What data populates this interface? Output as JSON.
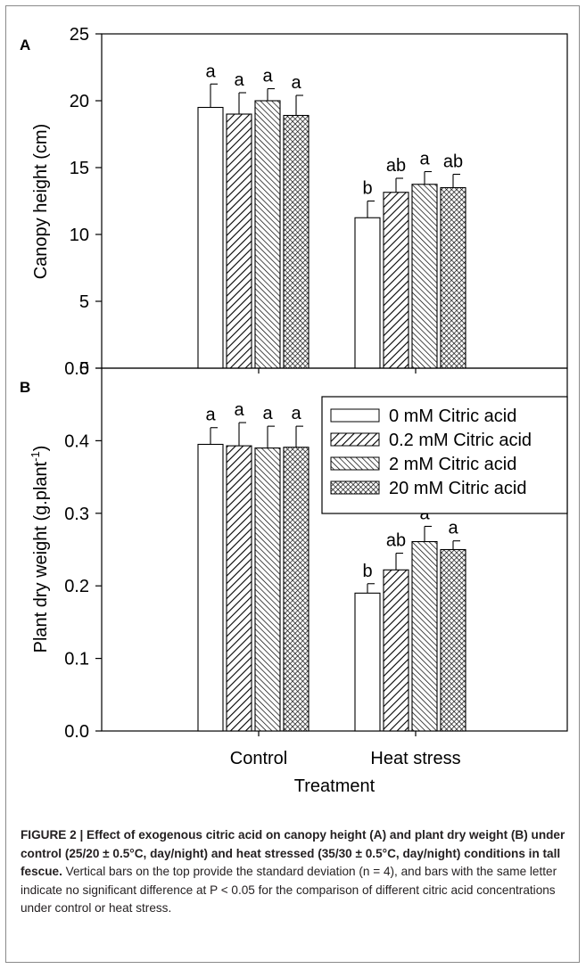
{
  "figure_label": "FIGURE 2",
  "caption": {
    "bold": "FIGURE 2 | Effect of exogenous citric acid on canopy height (A) and plant dry weight (B) under control (25/20 ± 0.5°C, day/night) and heat stressed (35/30 ± 0.5°C, day/night) conditions in tall fescue.",
    "normal": " Vertical bars on the top provide the standard deviation (n = 4), and bars with the same letter indicate no significant difference at P < 0.05 for the comparison of different citric acid concentrations under control or heat stress."
  },
  "colors": {
    "axis": "#000000",
    "bar_fill": "#ffffff",
    "frame": "#8a8a8a",
    "caption_text": "#231f20"
  },
  "chart_data": [
    {
      "type": "bar",
      "panel": "A",
      "xlabel": "",
      "ylabel": "Canopy height (cm)",
      "ylim": [
        0,
        25
      ],
      "yticks": [
        "0",
        "5",
        "10",
        "15",
        "20",
        "25"
      ],
      "categories": [
        "Control",
        "Heat stress"
      ],
      "series": [
        {
          "name": "0 mM Citric acid",
          "pattern": "none",
          "values": [
            19.5,
            11.25
          ],
          "errors": [
            1.75,
            1.25
          ],
          "letters": [
            "a",
            "b"
          ]
        },
        {
          "name": "0.2 mM Citric acid",
          "pattern": "diag-right",
          "values": [
            19.0,
            13.15
          ],
          "errors": [
            1.6,
            1.05
          ],
          "letters": [
            "a",
            "ab"
          ]
        },
        {
          "name": "2 mM Citric acid",
          "pattern": "diag-left",
          "values": [
            20.0,
            13.75
          ],
          "errors": [
            0.9,
            0.95
          ],
          "letters": [
            "a",
            "a"
          ]
        },
        {
          "name": "20 mM Citric acid",
          "pattern": "crosshatch",
          "values": [
            18.9,
            13.5
          ],
          "errors": [
            1.5,
            1.0
          ],
          "letters": [
            "a",
            "ab"
          ]
        }
      ],
      "legend": "none",
      "grid": false
    },
    {
      "type": "bar",
      "panel": "B",
      "xlabel": "Treatment",
      "ylabel": "Plant dry weight (g.plant-1)",
      "ylim": [
        0,
        0.5
      ],
      "yticks": [
        "0.0",
        "0.1",
        "0.2",
        "0.3",
        "0.4",
        "0.5"
      ],
      "categories": [
        "Control",
        "Heat stress"
      ],
      "series": [
        {
          "name": "0 mM Citric acid",
          "pattern": "none",
          "values": [
            0.395,
            0.19
          ],
          "errors": [
            0.023,
            0.013
          ],
          "letters": [
            "a",
            "b"
          ]
        },
        {
          "name": "0.2 mM Citric acid",
          "pattern": "diag-right",
          "values": [
            0.393,
            0.222
          ],
          "errors": [
            0.032,
            0.023
          ],
          "letters": [
            "a",
            "ab"
          ]
        },
        {
          "name": "2 mM Citric acid",
          "pattern": "diag-left",
          "values": [
            0.39,
            0.261
          ],
          "errors": [
            0.03,
            0.021
          ],
          "letters": [
            "a",
            "a"
          ]
        },
        {
          "name": "20 mM Citric acid",
          "pattern": "crosshatch",
          "values": [
            0.391,
            0.25
          ],
          "errors": [
            0.029,
            0.012
          ],
          "letters": [
            "a",
            "a"
          ]
        }
      ],
      "legend": "top-right",
      "grid": false
    }
  ]
}
